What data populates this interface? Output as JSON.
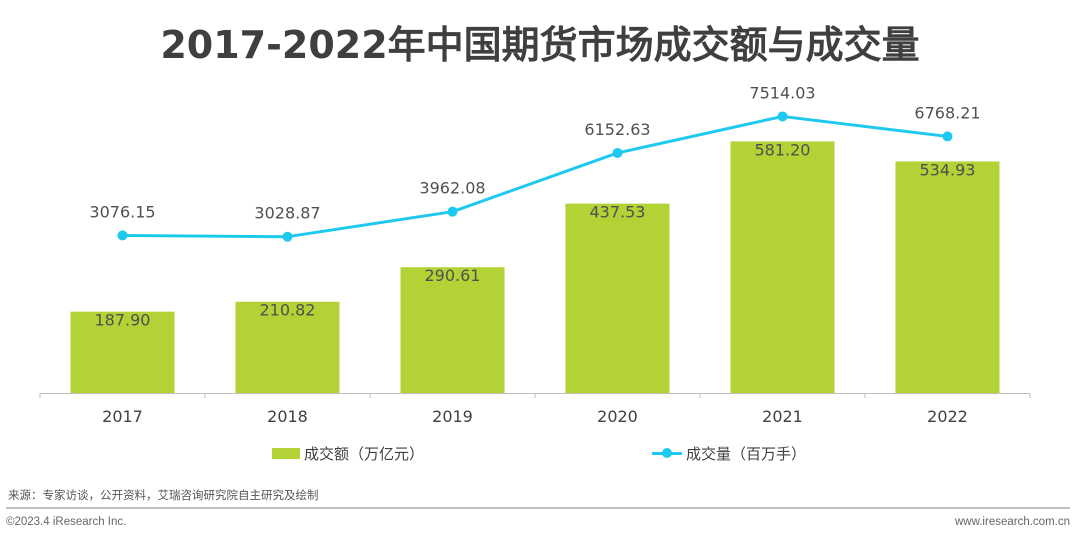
{
  "chart_data": {
    "type": "bar",
    "title": "2017-2022年中国期货市场成交额与成交量",
    "xlabel": "",
    "ylabel": "",
    "categories": [
      "2017",
      "2018",
      "2019",
      "2020",
      "2021",
      "2022"
    ],
    "series": [
      {
        "name": "成交额（万亿元）",
        "type": "bar",
        "color": "#b2d235",
        "values": [
          187.9,
          210.82,
          290.61,
          437.53,
          581.2,
          534.93
        ],
        "labels": [
          "187.90",
          "210.82",
          "290.61",
          "437.53",
          "581.20",
          "534.93"
        ],
        "ylim": [
          0,
          700
        ]
      },
      {
        "name": "成交量（百万手）",
        "type": "line",
        "color": "#1ec9ef",
        "values": [
          3076.15,
          3028.87,
          3962.08,
          6152.63,
          7514.03,
          6768.21
        ],
        "labels": [
          "3076.15",
          "3028.87",
          "3962.08",
          "6152.63",
          "7514.03",
          "6768.21"
        ],
        "ylim": [
          -2800,
          8500
        ]
      }
    ],
    "grid": false,
    "legend": "bottom"
  },
  "footer": {
    "source": "来源：专家访谈，公开资料，艾瑞咨询研究院自主研究及绘制",
    "copyright": "©2023.4 iResearch Inc.",
    "website": "www.iresearch.com.cn"
  }
}
